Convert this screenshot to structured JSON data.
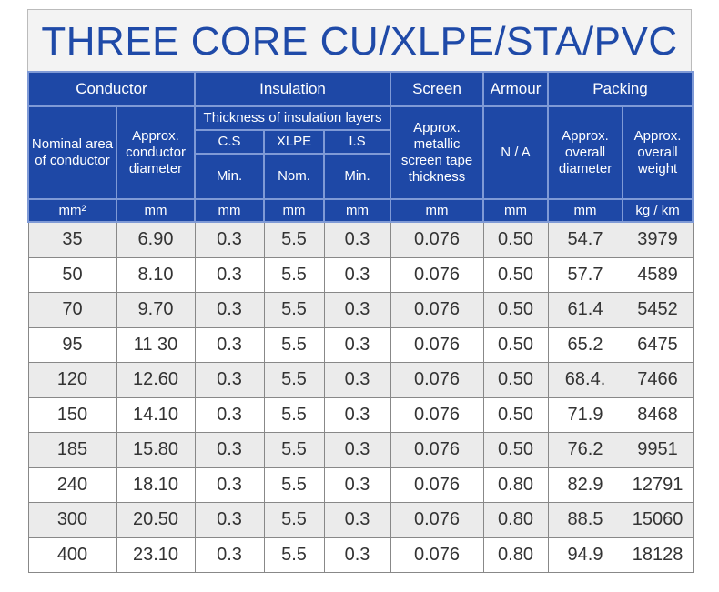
{
  "title": "THREE CORE CU/XLPE/STA/PVC",
  "colors": {
    "header_bg": "#1e48a6",
    "title_text": "#1f4aa8"
  },
  "groups": {
    "conductor": "Conductor",
    "insulation": "Insulation",
    "screen": "Screen",
    "armour": "Armour",
    "packing": "Packing"
  },
  "subheaders": {
    "nominal_area": "Nominal area of conductor",
    "conductor_diameter": "Approx. conductor diameter",
    "thickness": "Thickness of insulation layers",
    "cs": "C.S",
    "xlpe": "XLPE",
    "is": "I.S",
    "cs_q": "Min.",
    "xlpe_q": "Nom.",
    "is_q": "Min.",
    "screen_tape": "Approx. metallic screen tape thickness",
    "armour": "N / A",
    "overall_diameter": "Approx. overall diameter",
    "overall_weight": "Approx. overall weight"
  },
  "units": [
    "mm²",
    "mm",
    "mm",
    "mm",
    "mm",
    "mm",
    "mm",
    "mm",
    "kg / km"
  ],
  "rows": [
    [
      "35",
      "6.90",
      "0.3",
      "5.5",
      "0.3",
      "0.076",
      "0.50",
      "54.7",
      "3979"
    ],
    [
      "50",
      "8.10",
      "0.3",
      "5.5",
      "0.3",
      "0.076",
      "0.50",
      "57.7",
      "4589"
    ],
    [
      "70",
      "9.70",
      "0.3",
      "5.5",
      "0.3",
      "0.076",
      "0.50",
      "61.4",
      "5452"
    ],
    [
      "95",
      "11 30",
      "0.3",
      "5.5",
      "0.3",
      "0.076",
      "0.50",
      "65.2",
      "6475"
    ],
    [
      "120",
      "12.60",
      "0.3",
      "5.5",
      "0.3",
      "0.076",
      "0.50",
      "68.4.",
      "7466"
    ],
    [
      "150",
      "14.10",
      "0.3",
      "5.5",
      "0.3",
      "0.076",
      "0.50",
      "71.9",
      "8468"
    ],
    [
      "185",
      "15.80",
      "0.3",
      "5.5",
      "0.3",
      "0.076",
      "0.50",
      "76.2",
      "9951"
    ],
    [
      "240",
      "18.10",
      "0.3",
      "5.5",
      "0.3",
      "0.076",
      "0.80",
      "82.9",
      "12791"
    ],
    [
      "300",
      "20.50",
      "0.3",
      "5.5",
      "0.3",
      "0.076",
      "0.80",
      "88.5",
      "15060"
    ],
    [
      "400",
      "23.10",
      "0.3",
      "5.5",
      "0.3",
      "0.076",
      "0.80",
      "94.9",
      "18128"
    ]
  ]
}
